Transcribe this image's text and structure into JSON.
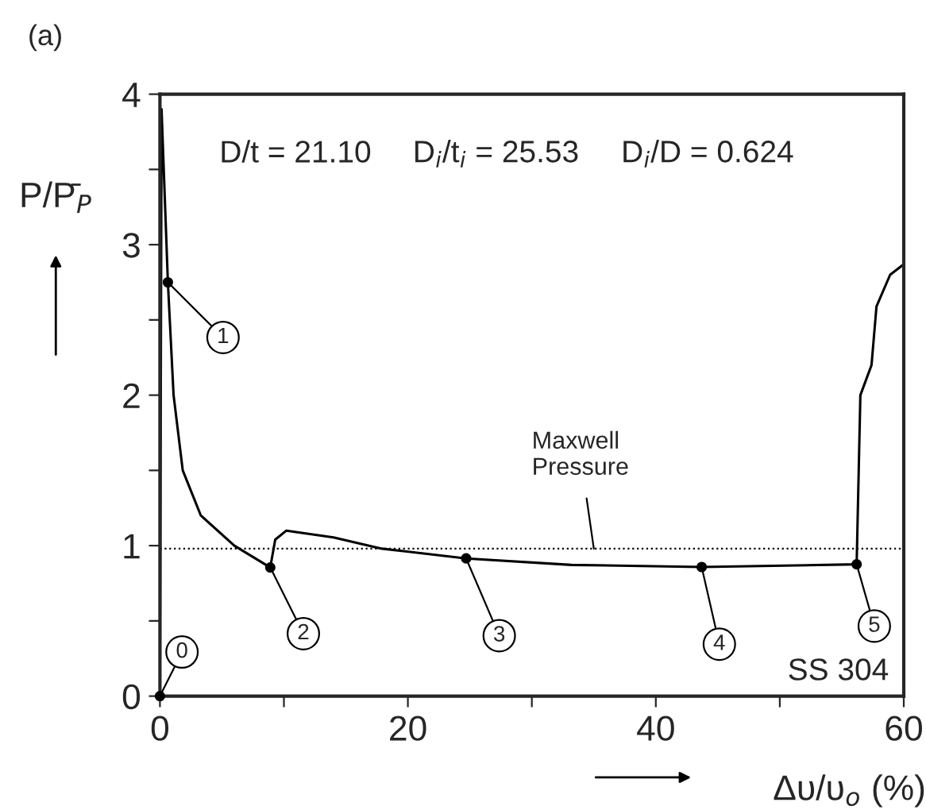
{
  "chart_data": {
    "type": "line",
    "title": "(a)",
    "xlabel": "Δυ/υ$_{o}$ (%)",
    "ylabel": "P/P̄$_{P}$",
    "xlim": [
      0,
      60
    ],
    "ylim": [
      0,
      4
    ],
    "xticks": [
      0,
      {
        "value": 10,
        "label": null
      },
      20,
      {
        "value": 30,
        "label": null
      },
      40,
      {
        "value": 50,
        "label": null
      },
      60
    ],
    "yticks": [
      0,
      {
        "value": 0.5,
        "label": null
      },
      1,
      {
        "value": 1.5,
        "label": null
      },
      2,
      {
        "value": 2.5,
        "label": null
      },
      3,
      {
        "value": 3.5,
        "label": null
      },
      4
    ],
    "grid": false,
    "legend": false,
    "series": [
      {
        "color": "#000000",
        "marker": "none",
        "line_style": "solid",
        "x": [
          0,
          0.13,
          0.64,
          1.1,
          1.84,
          3.3,
          6.0,
          8.9,
          9.3,
          10.2,
          14.0,
          17.9,
          24.7,
          33.2,
          43.7,
          56.2,
          56.5,
          57.4,
          57.8,
          58.9,
          60
        ],
        "values": [
          0,
          3.9,
          2.75,
          2.0,
          1.5,
          1.2,
          1.0,
          0.855,
          1.04,
          1.1,
          1.055,
          0.98,
          0.915,
          0.872,
          0.858,
          0.876,
          2.0,
          2.2,
          2.59,
          2.8,
          2.87
        ]
      },
      {
        "type": "scatter",
        "color": "#000000",
        "marker": "circle",
        "x": [
          0,
          0.64,
          8.9,
          24.7,
          43.7,
          56.2
        ],
        "values": [
          0,
          2.75,
          0.855,
          0.915,
          0.858,
          0.876
        ]
      }
    ],
    "ref_lines": [
      {
        "axis": "y",
        "value": 0.98,
        "label": "Maxwell\nPressure",
        "color": "#000000",
        "line_style": "dotted"
      }
    ],
    "annotations": [
      {
        "text": "0",
        "x": 0,
        "y": 0
      },
      {
        "text": "1",
        "x": 0.64,
        "y": 2.75
      },
      {
        "text": "2",
        "x": 8.9,
        "y": 0.855
      },
      {
        "text": "3",
        "x": 24.7,
        "y": 0.915
      },
      {
        "text": "4",
        "x": 43.7,
        "y": 0.858
      },
      {
        "text": "5",
        "x": 56.2,
        "y": 0.876
      },
      "D/t = 21.10",
      "D$_{i}$/t$_{i}$ = 25.53",
      "D$_{i}$/D = 0.624",
      "SS 304"
    ]
  }
}
